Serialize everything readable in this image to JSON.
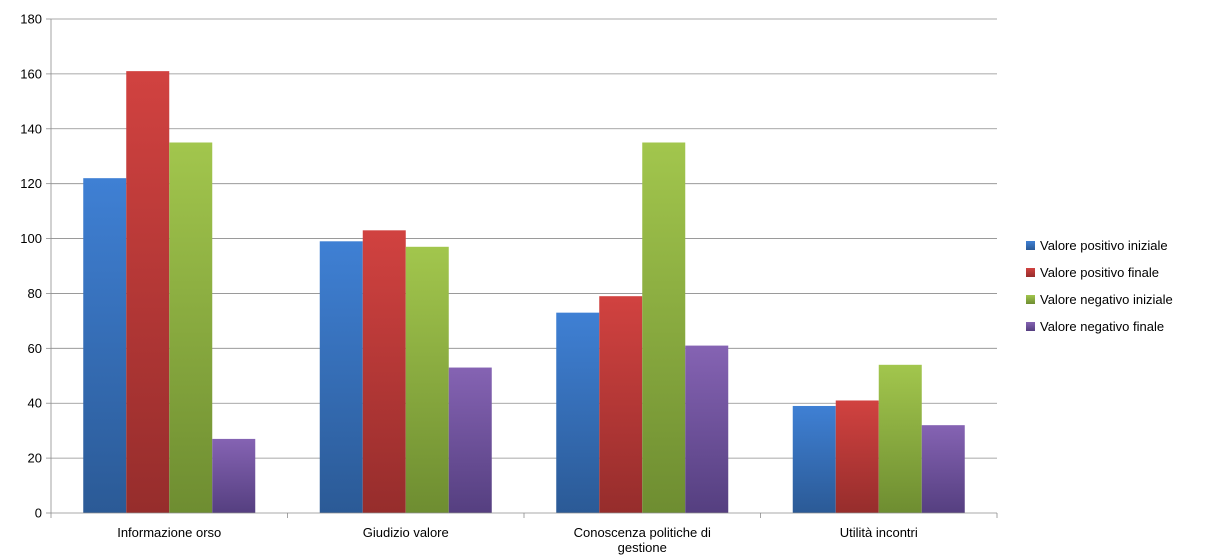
{
  "chart_data": {
    "type": "bar",
    "title": "",
    "xlabel": "",
    "ylabel": "",
    "ylim": [
      0,
      180
    ],
    "yticks": [
      0,
      20,
      40,
      60,
      80,
      100,
      120,
      140,
      160,
      180
    ],
    "grid": true,
    "legend_position": "right",
    "categories": [
      [
        "Informazione orso"
      ],
      [
        "Giudizio valore"
      ],
      [
        "Conoscenza politiche di",
        "gestione"
      ],
      [
        "Utilità incontri"
      ]
    ],
    "series": [
      {
        "name": "Valore positivo iniziale",
        "color_top": "#3f80d4",
        "color_bottom": "#2b5a96",
        "values": [
          122,
          99,
          73,
          39
        ]
      },
      {
        "name": "Valore positivo finale",
        "color_top": "#d14240",
        "color_bottom": "#962d2c",
        "values": [
          161,
          103,
          79,
          41
        ]
      },
      {
        "name": "Valore negativo iniziale",
        "color_top": "#a2c64d",
        "color_bottom": "#6e8d31",
        "values": [
          135,
          97,
          135,
          54
        ]
      },
      {
        "name": "Valore negativo finale",
        "color_top": "#8563b3",
        "color_bottom": "#553f80",
        "values": [
          27,
          53,
          61,
          32
        ]
      }
    ]
  }
}
